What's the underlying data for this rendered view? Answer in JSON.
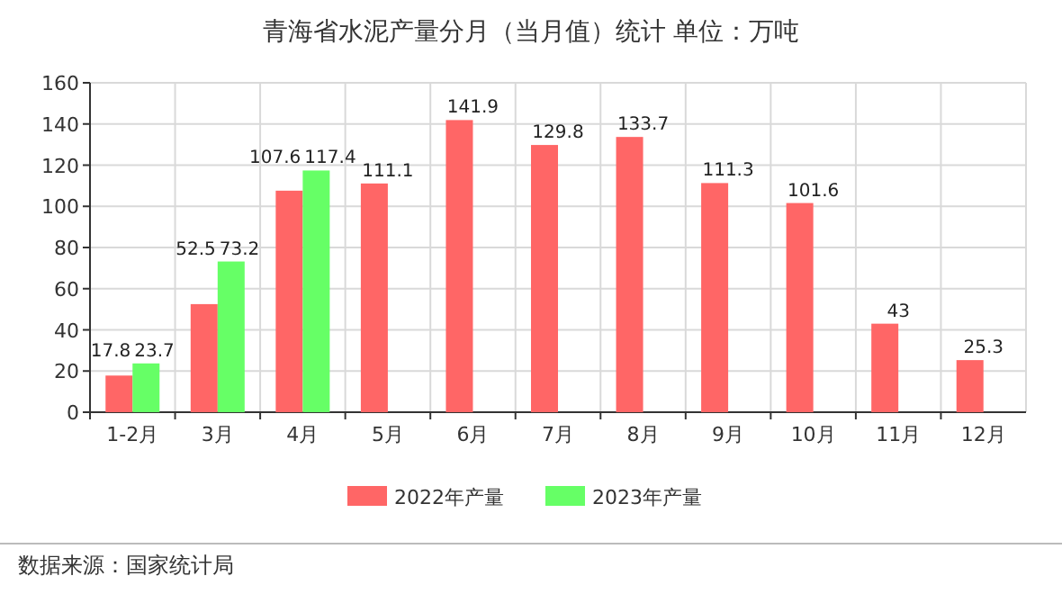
{
  "chart_data": {
    "type": "bar",
    "title": "青海省水泥产量分月（当月值）统计  单位：万吨",
    "categories": [
      "1-2月",
      "3月",
      "4月",
      "5月",
      "6月",
      "7月",
      "8月",
      "9月",
      "10月",
      "11月",
      "12月"
    ],
    "series": [
      {
        "name": "2022年产量",
        "color": "#ff6666",
        "values": [
          17.8,
          52.5,
          107.6,
          111.1,
          141.9,
          129.8,
          133.7,
          111.3,
          101.6,
          43,
          25.3
        ]
      },
      {
        "name": "2023年产量",
        "color": "#66ff66",
        "values": [
          23.7,
          73.2,
          117.4,
          null,
          null,
          null,
          null,
          null,
          null,
          null,
          null
        ]
      }
    ],
    "ylim": [
      0,
      160
    ],
    "yticks": [
      0,
      20,
      40,
      60,
      80,
      100,
      120,
      140,
      160
    ],
    "grid": true,
    "legend": "bottom",
    "data_labels": true,
    "annotations": [
      "数据来源：国家统计局"
    ]
  }
}
